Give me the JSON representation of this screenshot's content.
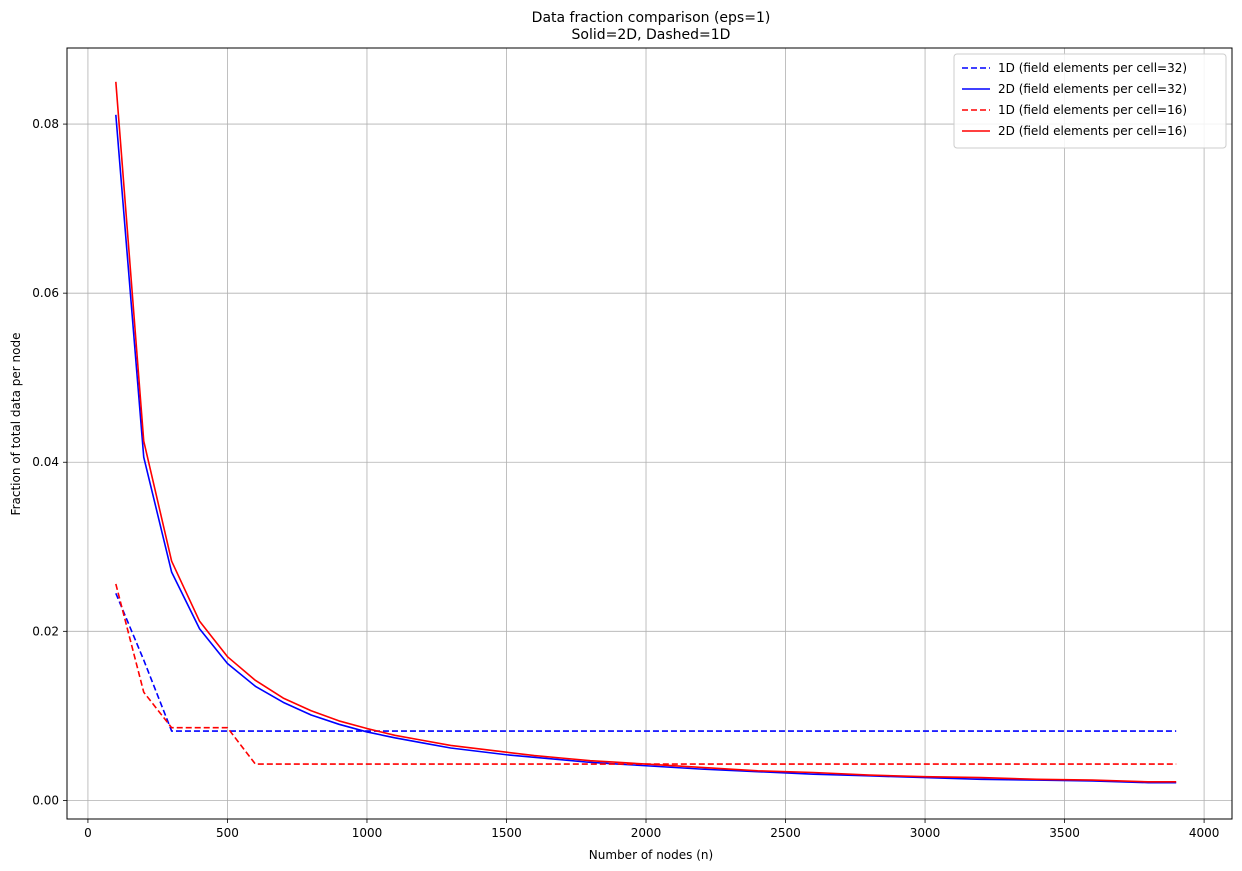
{
  "chart_data": {
    "type": "line",
    "title": "Data fraction comparison (eps=1)",
    "subtitle": "Solid=2D, Dashed=1D",
    "xlabel": "Number of nodes (n)",
    "ylabel": "Fraction of total data per node",
    "xlim": [
      -75,
      4100
    ],
    "ylim": [
      -0.0022,
      0.089
    ],
    "xticks": [
      0,
      500,
      1000,
      1500,
      2000,
      2500,
      3000,
      3500,
      4000
    ],
    "xtick_labels": [
      "0",
      "500",
      "1000",
      "1500",
      "2000",
      "2500",
      "3000",
      "3500",
      "4000"
    ],
    "yticks": [
      0.0,
      0.02,
      0.04,
      0.06,
      0.08
    ],
    "ytick_labels": [
      "0.00",
      "0.02",
      "0.04",
      "0.06",
      "0.08"
    ],
    "grid": true,
    "legend_position": "top-right",
    "series": [
      {
        "name": "1D (field elements per cell=32)",
        "color": "#0000ff",
        "dash": true,
        "x": [
          100,
          200,
          300,
          400,
          500,
          600,
          700,
          800,
          900,
          1000,
          1500,
          2000,
          2500,
          3000,
          3500,
          3900
        ],
        "y": [
          0.0245,
          0.0166,
          0.0082,
          0.0082,
          0.0082,
          0.0082,
          0.0082,
          0.0082,
          0.0082,
          0.0082,
          0.0082,
          0.0082,
          0.0082,
          0.0082,
          0.0082,
          0.0082
        ]
      },
      {
        "name": "2D (field elements per cell=32)",
        "color": "#0000ff",
        "dash": false,
        "x": [
          100,
          200,
          300,
          400,
          500,
          600,
          700,
          800,
          900,
          1000,
          1100,
          1200,
          1300,
          1400,
          1500,
          1600,
          1700,
          1800,
          1900,
          2000,
          2200,
          2400,
          2600,
          2800,
          3000,
          3200,
          3400,
          3600,
          3800,
          3900
        ],
        "y": [
          0.0811,
          0.0406,
          0.027,
          0.0203,
          0.0162,
          0.0135,
          0.0116,
          0.0101,
          0.009,
          0.0081,
          0.0074,
          0.0068,
          0.0062,
          0.0058,
          0.0054,
          0.0051,
          0.0048,
          0.0045,
          0.0043,
          0.0041,
          0.0037,
          0.0034,
          0.0031,
          0.0029,
          0.0027,
          0.0025,
          0.0024,
          0.0023,
          0.0021,
          0.0021
        ]
      },
      {
        "name": "1D (field elements per cell=16)",
        "color": "#ff0000",
        "dash": true,
        "x": [
          100,
          200,
          300,
          400,
          500,
          600,
          700,
          1000,
          1500,
          2000,
          2500,
          3000,
          3500,
          3900
        ],
        "y": [
          0.0256,
          0.0128,
          0.0086,
          0.0086,
          0.0086,
          0.0043,
          0.0043,
          0.0043,
          0.0043,
          0.0043,
          0.0043,
          0.0043,
          0.0043,
          0.0043
        ]
      },
      {
        "name": "2D (field elements per cell=16)",
        "color": "#ff0000",
        "dash": false,
        "x": [
          100,
          200,
          300,
          400,
          500,
          600,
          700,
          800,
          900,
          1000,
          1100,
          1200,
          1300,
          1400,
          1500,
          1600,
          1700,
          1800,
          1900,
          2000,
          2200,
          2400,
          2600,
          2800,
          3000,
          3200,
          3400,
          3600,
          3800,
          3900
        ],
        "y": [
          0.085,
          0.0425,
          0.0283,
          0.0212,
          0.017,
          0.0142,
          0.0121,
          0.0106,
          0.0094,
          0.0085,
          0.0077,
          0.0071,
          0.0065,
          0.0061,
          0.0057,
          0.0053,
          0.005,
          0.0047,
          0.0045,
          0.0043,
          0.0039,
          0.0035,
          0.0033,
          0.003,
          0.0028,
          0.0027,
          0.0025,
          0.0024,
          0.0022,
          0.0022
        ]
      }
    ]
  }
}
